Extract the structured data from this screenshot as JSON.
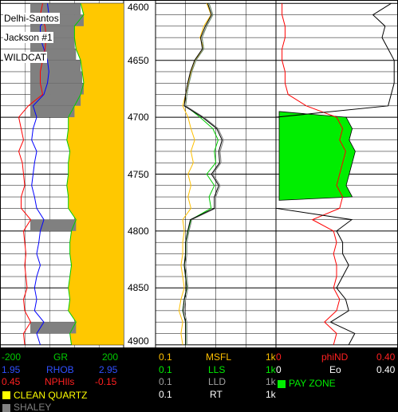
{
  "well": {
    "operator": "Delhi-Santos",
    "name": "Jackson #1",
    "status": "WILDCAT"
  },
  "colors": {
    "gr_fill_clean": "#ffc800",
    "gr_fill_shale": "#808080",
    "gr_curve": "#ffff00",
    "nphi_curve": "#ff0000",
    "rhob_curve": "#0000ff",
    "msfl_curve": "#ffc000",
    "lls_curve": "#00cc00",
    "lld_curve": "#808080",
    "rt_curve": "#000000",
    "pay_zone": "#00ee00",
    "phind_curve": "#ff0000",
    "eo_curve": "#000000"
  },
  "depth_axis": {
    "ticks": [
      "4600",
      "4650",
      "4700",
      "4750",
      "4800",
      "4850",
      "4900"
    ],
    "top": 4597,
    "bottom": 4903
  },
  "tracks": {
    "porosity": {
      "gr": {
        "left": "-200",
        "name": "GR",
        "right": "200"
      },
      "rhob": {
        "left": "1.95",
        "name": "RHOB",
        "right": "2.95"
      },
      "nphi": {
        "left": "0.45",
        "name": "NPHIls",
        "right": "-0.15"
      },
      "clean_quartz": "CLEAN QUARTZ",
      "shaley": "SHALEY"
    },
    "resistivity": {
      "msfl": {
        "left": "0.1",
        "name": "MSFL",
        "right": "1k"
      },
      "lls": {
        "left": "0.1",
        "name": "LLS",
        "right": "1k"
      },
      "lld": {
        "left": "0.1",
        "name": "LLD",
        "right": "1k"
      },
      "rt": {
        "left": "0.1",
        "name": "RT",
        "right": "1k"
      }
    },
    "pay": {
      "phind": {
        "left": "0",
        "name": "phiND",
        "right": "0.40"
      },
      "eo": {
        "left": "0",
        "name": "Eo",
        "right": "0.40"
      },
      "pay_zone": "PAY ZONE"
    }
  },
  "chart_data": {
    "type": "well-log",
    "depth": [
      4600,
      4610,
      4620,
      4630,
      4640,
      4650,
      4660,
      4670,
      4680,
      4690,
      4700,
      4710,
      4720,
      4730,
      4740,
      4750,
      4760,
      4770,
      4780,
      4790,
      4800,
      4810,
      4820,
      4830,
      4840,
      4850,
      4860,
      4870,
      4880,
      4890,
      4900
    ],
    "gr": [
      60,
      70,
      40,
      40,
      45,
      60,
      65,
      70,
      60,
      40,
      20,
      20,
      15,
      25,
      20,
      20,
      15,
      20,
      20,
      45,
      30,
      25,
      25,
      30,
      25,
      20,
      25,
      20,
      45,
      25,
      30
    ],
    "rhob": [
      2.6,
      2.62,
      2.5,
      2.5,
      2.55,
      2.6,
      2.62,
      2.6,
      2.55,
      2.4,
      2.45,
      2.4,
      2.38,
      2.45,
      2.42,
      2.4,
      2.38,
      2.42,
      2.45,
      2.55,
      2.5,
      2.48,
      2.45,
      2.5,
      2.45,
      2.42,
      2.45,
      2.42,
      2.55,
      2.45,
      2.5
    ],
    "nphi": [
      0.1,
      0.12,
      0.08,
      0.07,
      0.08,
      0.1,
      0.12,
      0.12,
      0.1,
      0.22,
      0.3,
      0.28,
      0.26,
      0.3,
      0.27,
      0.26,
      0.25,
      0.28,
      0.28,
      0.2,
      0.26,
      0.25,
      0.24,
      0.25,
      0.24,
      0.23,
      0.26,
      0.25,
      0.2,
      0.26,
      0.25
    ],
    "msfl": [
      5,
      7,
      4,
      3,
      4,
      2,
      1.5,
      1.2,
      1,
      0.8,
      1.2,
      1.5,
      2,
      1.5,
      1.8,
      1.2,
      1.5,
      1.2,
      1.5,
      0.8,
      0.9,
      0.8,
      0.8,
      0.7,
      0.8,
      0.9,
      0.7,
      0.6,
      0.8,
      0.7,
      0.8
    ],
    "lls": [
      6,
      8,
      5,
      3.5,
      4,
      2.2,
      1.6,
      1.3,
      1.1,
      1,
      3,
      8,
      12,
      9,
      10,
      5,
      9,
      6,
      7,
      1.5,
      1.2,
      1,
      1,
      0.9,
      1,
      1.1,
      0.9,
      0.8,
      1,
      1,
      1
    ],
    "lld": [
      6,
      8,
      5,
      3.5,
      4,
      2.2,
      1.6,
      1.3,
      1.1,
      1,
      4,
      12,
      18,
      14,
      15,
      8,
      14,
      10,
      10,
      1.6,
      1.3,
      1.1,
      1.1,
      1,
      1.1,
      1.2,
      1,
      0.9,
      1.1,
      1.1,
      1.1
    ],
    "phind": [
      0.02,
      0.02,
      0.03,
      0.03,
      0.02,
      0.02,
      0.03,
      0.03,
      0.04,
      0.1,
      0.2,
      0.22,
      0.21,
      0.23,
      0.22,
      0.21,
      0.2,
      0.22,
      0.21,
      0.12,
      0.19,
      0.2,
      0.19,
      0.2,
      0.2,
      0.19,
      0.21,
      0.2,
      0.16,
      0.2,
      0.19
    ],
    "eo": [
      0.38,
      0.32,
      0.36,
      0.35,
      0.37,
      0.39,
      0.39,
      0.39,
      0.38,
      0.37,
      0.0,
      0.0,
      0.0,
      0.0,
      0.0,
      0.0,
      0.0,
      0.0,
      0.0,
      0.25,
      0.2,
      0.22,
      0.22,
      0.24,
      0.22,
      0.2,
      0.23,
      0.24,
      0.18,
      0.26,
      0.24
    ],
    "pay_zones": [
      [
        4695,
        4773
      ]
    ]
  }
}
